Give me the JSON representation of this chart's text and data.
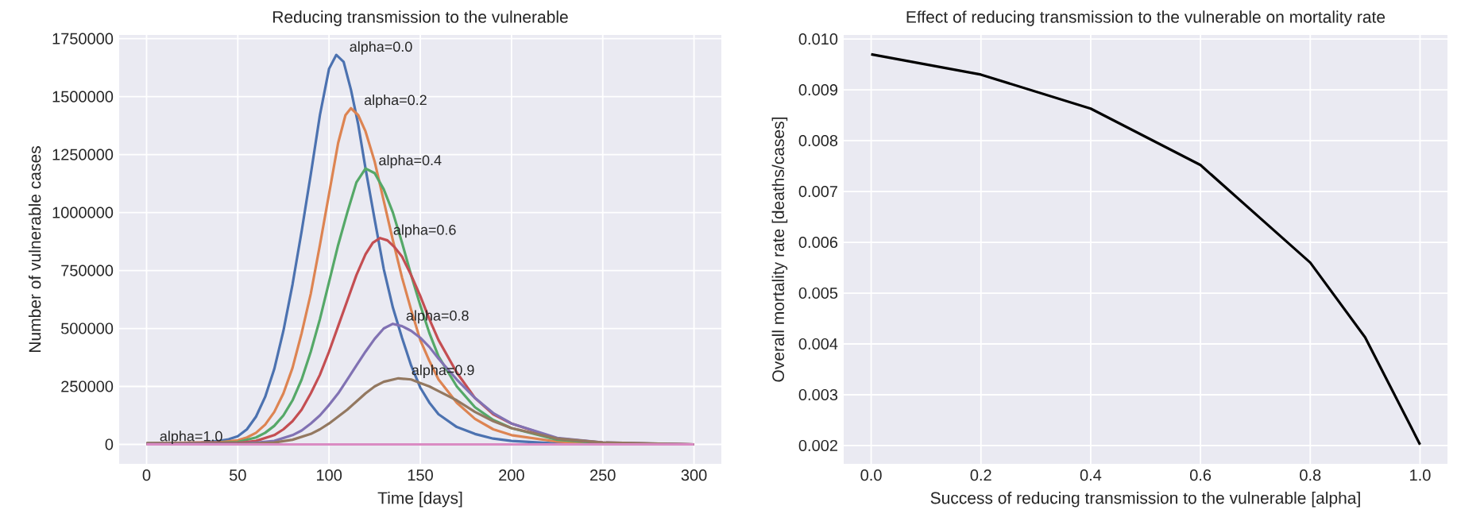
{
  "chart_data": [
    {
      "type": "line",
      "title": "Reducing transmission to the vulnerable",
      "xlabel": "Time [days]",
      "ylabel": "Number of vulnerable cases",
      "grid": true,
      "xlim": [
        -15,
        315
      ],
      "ylim": [
        -84000,
        1766000
      ],
      "xticks": [
        0,
        50,
        100,
        150,
        200,
        250,
        300
      ],
      "yticks": [
        0,
        250000,
        500000,
        750000,
        1000000,
        1250000,
        1500000,
        1750000
      ],
      "series": [
        {
          "color": "#4c72b0",
          "x": [
            0,
            20,
            30,
            40,
            45,
            50,
            55,
            60,
            65,
            70,
            75,
            80,
            85,
            90,
            95,
            100,
            104,
            108,
            112,
            116,
            120,
            125,
            130,
            135,
            140,
            145,
            150,
            155,
            160,
            170,
            180,
            190,
            200,
            225,
            250,
            300
          ],
          "values": [
            5000,
            6000,
            8000,
            15000,
            22000,
            35000,
            65000,
            120000,
            205000,
            325000,
            490000,
            690000,
            920000,
            1165000,
            1420000,
            1620000,
            1680000,
            1650000,
            1530000,
            1380000,
            1190000,
            970000,
            756000,
            590000,
            460000,
            340000,
            245000,
            180000,
            130000,
            75000,
            45000,
            25000,
            15000,
            4000,
            1000,
            0
          ]
        },
        {
          "color": "#dd8452",
          "x": [
            0,
            40,
            50,
            55,
            60,
            65,
            70,
            75,
            80,
            85,
            90,
            95,
            100,
            105,
            109,
            112,
            116,
            120,
            125,
            130,
            135,
            140,
            145,
            150,
            155,
            160,
            170,
            180,
            190,
            200,
            225,
            250,
            300
          ],
          "values": [
            5000,
            9000,
            18000,
            30000,
            50000,
            85000,
            140000,
            220000,
            330000,
            480000,
            650000,
            860000,
            1080000,
            1300000,
            1420000,
            1450000,
            1420000,
            1350000,
            1220000,
            1050000,
            880000,
            720000,
            580000,
            450000,
            360000,
            280000,
            180000,
            110000,
            65000,
            40000,
            12000,
            3000,
            0
          ]
        },
        {
          "color": "#55a868",
          "x": [
            0,
            40,
            50,
            60,
            65,
            70,
            75,
            80,
            85,
            90,
            95,
            100,
            105,
            110,
            115,
            120,
            125,
            130,
            135,
            140,
            145,
            150,
            155,
            160,
            170,
            180,
            190,
            200,
            225,
            250,
            300
          ],
          "values": [
            5000,
            7000,
            10000,
            30000,
            50000,
            80000,
            125000,
            190000,
            280000,
            400000,
            540000,
            700000,
            860000,
            1000000,
            1130000,
            1190000,
            1170000,
            1100000,
            1000000,
            870000,
            730000,
            600000,
            480000,
            380000,
            250000,
            160000,
            105000,
            70000,
            20000,
            5000,
            0
          ]
        },
        {
          "color": "#c44e52",
          "x": [
            0,
            50,
            60,
            70,
            75,
            80,
            85,
            90,
            95,
            100,
            105,
            110,
            115,
            120,
            124,
            128,
            132,
            136,
            140,
            145,
            150,
            155,
            160,
            170,
            180,
            190,
            200,
            225,
            250,
            300
          ],
          "values": [
            4000,
            6000,
            15000,
            40000,
            65000,
            100000,
            150000,
            220000,
            300000,
            400000,
            510000,
            620000,
            730000,
            820000,
            870000,
            890000,
            880000,
            850000,
            810000,
            730000,
            640000,
            540000,
            450000,
            310000,
            200000,
            130000,
            90000,
            25000,
            7000,
            0
          ]
        },
        {
          "color": "#8172b3",
          "x": [
            0,
            50,
            60,
            70,
            80,
            85,
            90,
            95,
            100,
            105,
            110,
            115,
            120,
            125,
            130,
            135,
            140,
            145,
            150,
            155,
            160,
            170,
            180,
            190,
            200,
            225,
            250,
            300
          ],
          "values": [
            2000,
            3000,
            7000,
            15000,
            40000,
            60000,
            90000,
            125000,
            170000,
            220000,
            280000,
            340000,
            400000,
            455000,
            500000,
            520000,
            510000,
            490000,
            460000,
            420000,
            370000,
            280000,
            200000,
            135000,
            90000,
            28000,
            8000,
            0
          ]
        },
        {
          "color": "#937860",
          "x": [
            0,
            50,
            60,
            70,
            80,
            90,
            95,
            100,
            105,
            110,
            115,
            120,
            125,
            130,
            138,
            145,
            150,
            155,
            160,
            170,
            180,
            190,
            200,
            225,
            250,
            300
          ],
          "values": [
            1000,
            2000,
            4000,
            8000,
            20000,
            45000,
            65000,
            90000,
            120000,
            150000,
            185000,
            220000,
            250000,
            270000,
            285000,
            280000,
            265000,
            250000,
            230000,
            190000,
            140000,
            100000,
            70000,
            25000,
            8000,
            0
          ]
        },
        {
          "color": "#da8bc3",
          "x": [
            0,
            100,
            200,
            300
          ],
          "values": [
            0,
            0,
            0,
            0
          ]
        }
      ],
      "annotations": [
        {
          "text": "alpha=0.0",
          "x": 104,
          "y": 1680000
        },
        {
          "text": "alpha=0.2",
          "x": 112,
          "y": 1450000
        },
        {
          "text": "alpha=0.4",
          "x": 120,
          "y": 1190000
        },
        {
          "text": "alpha=0.6",
          "x": 128,
          "y": 890000
        },
        {
          "text": "alpha=0.8",
          "x": 135,
          "y": 520000
        },
        {
          "text": "alpha=0.9",
          "x": 138,
          "y": 285000
        },
        {
          "text": "alpha=1.0",
          "x": 0,
          "y": 0
        }
      ]
    },
    {
      "type": "line",
      "title": "Effect of reducing transmission to the vulnerable on mortality rate",
      "xlabel": "Success of reducing transmission to the vulnerable [alpha]",
      "ylabel": "Overall mortality rate [deaths/cases]",
      "grid": true,
      "xlim": [
        -0.05,
        1.05
      ],
      "ylim": [
        0.00164,
        0.01008
      ],
      "xticks": [
        {
          "value": 0,
          "label": "0.0"
        },
        {
          "value": 0.2,
          "label": "0.2"
        },
        {
          "value": 0.4,
          "label": "0.4"
        },
        {
          "value": 0.6,
          "label": "0.6"
        },
        {
          "value": 0.8,
          "label": "0.8"
        },
        {
          "value": 1,
          "label": "1.0"
        }
      ],
      "yticks": [
        {
          "value": 0.002,
          "label": "0.002"
        },
        {
          "value": 0.003,
          "label": "0.003"
        },
        {
          "value": 0.004,
          "label": "0.004"
        },
        {
          "value": 0.005,
          "label": "0.005"
        },
        {
          "value": 0.006,
          "label": "0.006"
        },
        {
          "value": 0.007,
          "label": "0.007"
        },
        {
          "value": 0.008,
          "label": "0.008"
        },
        {
          "value": 0.009,
          "label": "0.009"
        },
        {
          "value": 0.01,
          "label": "0.010"
        }
      ],
      "series": [
        {
          "color": "#000000",
          "x": [
            0,
            0.2,
            0.4,
            0.6,
            0.8,
            0.9,
            1.0
          ],
          "values": [
            0.0097,
            0.0093,
            0.00863,
            0.00752,
            0.0056,
            0.00413,
            0.00202
          ]
        }
      ]
    }
  ]
}
